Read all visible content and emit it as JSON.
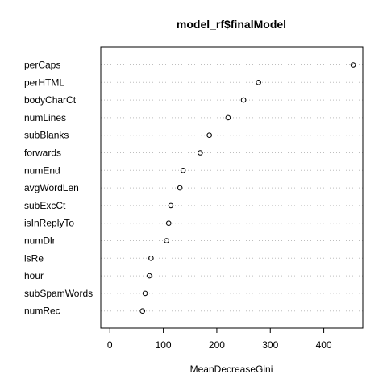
{
  "chart_data": {
    "type": "scatter",
    "variant": "dotchart",
    "title": "model_rf$finalModel",
    "xlabel": "MeanDecreaseGini",
    "ylabel": "",
    "xlim": [
      -17,
      473
    ],
    "xticks": [
      0,
      100,
      200,
      300,
      400
    ],
    "grid": "dotted horizontal guide lines",
    "colors": {
      "point_stroke": "#000000",
      "grid": "#bebebe",
      "frame": "#000000"
    },
    "points": [
      {
        "label": "perCaps",
        "value": 455
      },
      {
        "label": "perHTML",
        "value": 278
      },
      {
        "label": "bodyCharCt",
        "value": 250
      },
      {
        "label": "numLines",
        "value": 221
      },
      {
        "label": "subBlanks",
        "value": 186
      },
      {
        "label": "forwards",
        "value": 169
      },
      {
        "label": "numEnd",
        "value": 137
      },
      {
        "label": "avgWordLen",
        "value": 131
      },
      {
        "label": "subExcCt",
        "value": 114
      },
      {
        "label": "isInReplyTo",
        "value": 110
      },
      {
        "label": "numDlr",
        "value": 106
      },
      {
        "label": "isRe",
        "value": 77
      },
      {
        "label": "hour",
        "value": 74
      },
      {
        "label": "subSpamWords",
        "value": 66
      },
      {
        "label": "numRec",
        "value": 61
      }
    ]
  }
}
